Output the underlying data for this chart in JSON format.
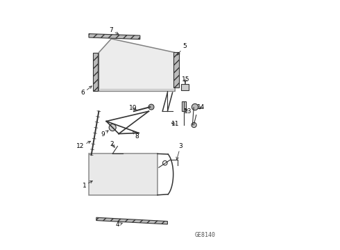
{
  "diagram_id": "GE8140",
  "bg_color": "#ffffff",
  "line_color": "#333333",
  "label_color": "#000000",
  "figsize": [
    4.9,
    3.6
  ],
  "dpi": 100
}
